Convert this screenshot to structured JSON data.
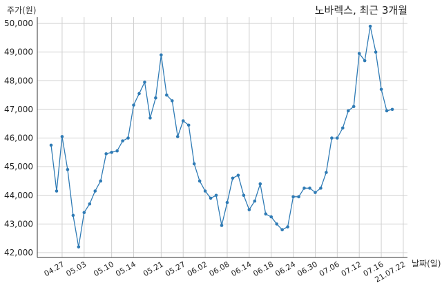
{
  "chart_data": {
    "type": "line",
    "title": "노바렉스, 최근 3개월",
    "ylabel": "주가(원)",
    "xlabel": "날짜(일)",
    "ylim": [
      42000,
      50000
    ],
    "yticks": [
      "42,000",
      "43,000",
      "44,000",
      "45,000",
      "46,000",
      "47,000",
      "48,000",
      "49,000",
      "50,000"
    ],
    "xtick_labels": [
      "04.27",
      "05.03",
      "05.10",
      "05.14",
      "05.21",
      "05.27",
      "06.02",
      "06.08",
      "06.14",
      "06.18",
      "06.24",
      "06.30",
      "07.06",
      "07.12",
      "07.16",
      "21.07.22"
    ],
    "xtick_indices": [
      2,
      6,
      11,
      15,
      20,
      24,
      28,
      32,
      36,
      40,
      44,
      48,
      52,
      56,
      60,
      64
    ],
    "grid": true,
    "color": "#2f7bb5",
    "series": [
      {
        "values": [
          45750,
          44150,
          46050,
          44900,
          43300,
          42200,
          43400,
          43700,
          44150,
          44500,
          45450,
          45500,
          45550,
          45900,
          46000,
          47150,
          47550,
          47950,
          46700,
          47400,
          48900,
          47500,
          47300,
          46050,
          46600,
          46450,
          45100,
          44500,
          44150,
          43900,
          44000,
          42950,
          43750,
          44600,
          44700,
          44000,
          43500,
          43800,
          44400,
          43350,
          43250,
          43000,
          42800,
          42900,
          43950,
          43950,
          44250,
          44250,
          44100,
          44250,
          44800,
          46000,
          46000,
          46350,
          46950,
          47100,
          48950,
          48700,
          49900,
          49000,
          47700,
          46950,
          47000
        ]
      }
    ]
  }
}
